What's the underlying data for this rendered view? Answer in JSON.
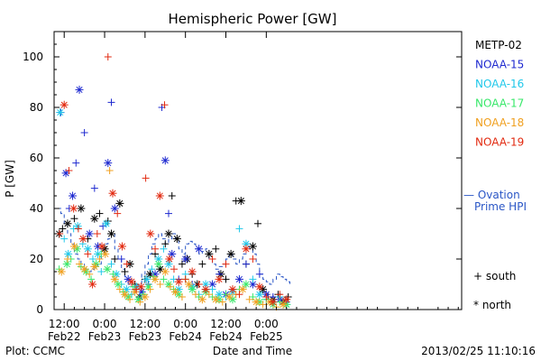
{
  "chart_data": {
    "type": "scatter",
    "title": "Hemispheric Power [GW]",
    "xlabel": "Date and Time",
    "ylabel": "P [GW]",
    "x_unit": "hours from 2013-02-22 00:00 UT",
    "xlim": [
      9,
      130
    ],
    "ylim": [
      0,
      110
    ],
    "yticks": [
      0,
      20,
      40,
      60,
      80,
      100
    ],
    "xticks": [
      {
        "x": 12,
        "label1": "12:00",
        "label2": "Feb22"
      },
      {
        "x": 24,
        "label1": "0:00",
        "label2": "Feb23"
      },
      {
        "x": 36,
        "label1": "12:00",
        "label2": "Feb23"
      },
      {
        "x": 48,
        "label1": "0:00",
        "label2": "Feb24"
      },
      {
        "x": 60,
        "label1": "12:00",
        "label2": "Feb24"
      },
      {
        "x": 72,
        "label1": "0:00",
        "label2": "Feb25"
      }
    ],
    "footer_left": "Plot: CCMC",
    "footer_right": "2013/02/25 11:10:16",
    "markers": {
      "south": "+ south",
      "north": "* north"
    },
    "ovation_label": [
      "— Ovation",
      "Prime HPI"
    ],
    "series": [
      {
        "name": "METP-02",
        "color": "#000000",
        "points": [
          [
            10.5,
            30
          ],
          [
            11.5,
            32
          ],
          [
            13,
            34
          ],
          [
            15,
            36
          ],
          [
            17,
            40
          ],
          [
            19,
            28
          ],
          [
            21,
            36
          ],
          [
            22.5,
            38
          ],
          [
            24,
            24
          ],
          [
            25,
            35
          ],
          [
            26,
            30
          ],
          [
            27,
            20
          ],
          [
            28.5,
            42
          ],
          [
            30,
            15
          ],
          [
            31.5,
            18
          ],
          [
            33,
            10
          ],
          [
            34.5,
            5
          ],
          [
            36,
            12
          ],
          [
            37.5,
            14
          ],
          [
            39,
            22
          ],
          [
            40.5,
            16
          ],
          [
            42,
            26
          ],
          [
            43,
            30
          ],
          [
            44,
            45
          ],
          [
            45.5,
            28
          ],
          [
            47,
            18
          ],
          [
            48.5,
            20
          ],
          [
            50,
            14
          ],
          [
            51.5,
            10
          ],
          [
            53,
            18
          ],
          [
            55,
            22
          ],
          [
            57,
            24
          ],
          [
            58.5,
            14
          ],
          [
            60,
            12
          ],
          [
            61.5,
            22
          ],
          [
            63,
            43
          ],
          [
            64.5,
            43
          ],
          [
            66,
            18
          ],
          [
            68,
            25
          ],
          [
            69.5,
            34
          ],
          [
            71,
            8
          ],
          [
            72.5,
            5
          ],
          [
            74,
            4
          ],
          [
            75.5,
            6
          ],
          [
            77,
            3
          ],
          [
            78.5,
            5
          ]
        ]
      },
      {
        "name": "NOAA-15",
        "color": "#1f2ad0",
        "points": [
          [
            11,
            78
          ],
          [
            12.5,
            54
          ],
          [
            13.5,
            40
          ],
          [
            14.5,
            45
          ],
          [
            15.5,
            58
          ],
          [
            16.5,
            87
          ],
          [
            18,
            70
          ],
          [
            19.5,
            30
          ],
          [
            21,
            48
          ],
          [
            22,
            25
          ],
          [
            23.5,
            33
          ],
          [
            25,
            58
          ],
          [
            26,
            82
          ],
          [
            27,
            40
          ],
          [
            29,
            20
          ],
          [
            31,
            12
          ],
          [
            33,
            8
          ],
          [
            35,
            7
          ],
          [
            37,
            10
          ],
          [
            39,
            14
          ],
          [
            41,
            80
          ],
          [
            42,
            59
          ],
          [
            43,
            38
          ],
          [
            44,
            22
          ],
          [
            46,
            12
          ],
          [
            48,
            20
          ],
          [
            50,
            10
          ],
          [
            52,
            24
          ],
          [
            54,
            8
          ],
          [
            56,
            10
          ],
          [
            58,
            14
          ],
          [
            60,
            6
          ],
          [
            62,
            8
          ],
          [
            64,
            12
          ],
          [
            66,
            18
          ],
          [
            68,
            10
          ],
          [
            70,
            14
          ],
          [
            72,
            6
          ],
          [
            74,
            5
          ],
          [
            76,
            4
          ],
          [
            78,
            3
          ]
        ]
      },
      {
        "name": "NOAA-16",
        "color": "#20c8ea",
        "points": [
          [
            10.8,
            78
          ],
          [
            12,
            28
          ],
          [
            13.2,
            22
          ],
          [
            14.8,
            32
          ],
          [
            16,
            33
          ],
          [
            17.5,
            26
          ],
          [
            19,
            24
          ],
          [
            20.5,
            20
          ],
          [
            22,
            22
          ],
          [
            23,
            15
          ],
          [
            24.5,
            34
          ],
          [
            26,
            18
          ],
          [
            27.5,
            14
          ],
          [
            29,
            10
          ],
          [
            30.5,
            8
          ],
          [
            32,
            6
          ],
          [
            33.5,
            9
          ],
          [
            35,
            5
          ],
          [
            36.5,
            12
          ],
          [
            38,
            16
          ],
          [
            40,
            20
          ],
          [
            41.5,
            24
          ],
          [
            43,
            18
          ],
          [
            44.5,
            12
          ],
          [
            46,
            8
          ],
          [
            48,
            14
          ],
          [
            50,
            9
          ],
          [
            52,
            6
          ],
          [
            54,
            10
          ],
          [
            56,
            8
          ],
          [
            58,
            6
          ],
          [
            60,
            5
          ],
          [
            62,
            7
          ],
          [
            64,
            32
          ],
          [
            66,
            26
          ],
          [
            68,
            12
          ],
          [
            70,
            6
          ],
          [
            72,
            4
          ],
          [
            74,
            3
          ],
          [
            76,
            5
          ],
          [
            78,
            2
          ]
        ]
      },
      {
        "name": "NOAA-17",
        "color": "#38e86a",
        "points": [
          [
            10.5,
            16
          ],
          [
            12.8,
            18
          ],
          [
            14,
            20
          ],
          [
            15.8,
            24
          ],
          [
            17,
            17
          ],
          [
            18.5,
            15
          ],
          [
            20,
            12
          ],
          [
            21.5,
            18
          ],
          [
            23,
            22
          ],
          [
            24.8,
            16
          ],
          [
            26.5,
            14
          ],
          [
            28,
            10
          ],
          [
            29.5,
            7
          ],
          [
            31,
            5
          ],
          [
            32.5,
            9
          ],
          [
            34,
            4
          ],
          [
            35.5,
            6
          ],
          [
            37,
            9
          ],
          [
            38.5,
            13
          ],
          [
            40,
            18
          ],
          [
            41.5,
            12
          ],
          [
            43,
            10
          ],
          [
            44.5,
            8
          ],
          [
            46,
            6
          ],
          [
            48,
            12
          ],
          [
            50,
            8
          ],
          [
            52,
            5
          ],
          [
            54,
            7
          ],
          [
            56,
            5
          ],
          [
            58,
            4
          ],
          [
            60,
            6
          ],
          [
            62,
            4
          ],
          [
            64,
            8
          ],
          [
            66,
            10
          ],
          [
            68,
            5
          ],
          [
            70,
            3
          ],
          [
            72,
            4
          ],
          [
            74,
            2
          ],
          [
            76,
            3
          ],
          [
            78,
            2
          ]
        ]
      },
      {
        "name": "NOAA-18",
        "color": "#f0a020",
        "points": [
          [
            11.2,
            15
          ],
          [
            13,
            20
          ],
          [
            15,
            25
          ],
          [
            16.5,
            18
          ],
          [
            18,
            16
          ],
          [
            19.5,
            14
          ],
          [
            21,
            17
          ],
          [
            22.5,
            20
          ],
          [
            24.2,
            22
          ],
          [
            25.5,
            55
          ],
          [
            27,
            12
          ],
          [
            28.5,
            8
          ],
          [
            30,
            6
          ],
          [
            31.5,
            4
          ],
          [
            33,
            7
          ],
          [
            34.5,
            3
          ],
          [
            36,
            5
          ],
          [
            37.5,
            8
          ],
          [
            39,
            12
          ],
          [
            40.5,
            10
          ],
          [
            42,
            15
          ],
          [
            43.5,
            9
          ],
          [
            45,
            7
          ],
          [
            47,
            5
          ],
          [
            49,
            10
          ],
          [
            51,
            6
          ],
          [
            53,
            4
          ],
          [
            55,
            6
          ],
          [
            57,
            4
          ],
          [
            59,
            3
          ],
          [
            61,
            5
          ],
          [
            63,
            6
          ],
          [
            65,
            8
          ],
          [
            67,
            4
          ],
          [
            69,
            3
          ],
          [
            71,
            2
          ],
          [
            73,
            3
          ],
          [
            75,
            1
          ],
          [
            77,
            2
          ]
        ]
      },
      {
        "name": "NOAA-19",
        "color": "#e22a10",
        "points": [
          [
            10.6,
            30
          ],
          [
            12,
            81
          ],
          [
            13.4,
            55
          ],
          [
            14.8,
            40
          ],
          [
            16.2,
            32
          ],
          [
            17.6,
            28
          ],
          [
            19,
            22
          ],
          [
            20.4,
            10
          ],
          [
            21.8,
            30
          ],
          [
            23.2,
            25
          ],
          [
            25,
            100
          ],
          [
            26.4,
            46
          ],
          [
            27.8,
            38
          ],
          [
            29.2,
            25
          ],
          [
            30.6,
            18
          ],
          [
            32,
            11
          ],
          [
            33.4,
            8
          ],
          [
            34.8,
            9
          ],
          [
            36.2,
            52
          ],
          [
            37.6,
            30
          ],
          [
            39,
            24
          ],
          [
            40.4,
            45
          ],
          [
            41.8,
            81
          ],
          [
            43.2,
            20
          ],
          [
            44.6,
            16
          ],
          [
            46,
            11
          ],
          [
            48,
            12
          ],
          [
            50,
            15
          ],
          [
            52,
            10
          ],
          [
            54,
            8
          ],
          [
            56,
            20
          ],
          [
            58,
            12
          ],
          [
            60,
            18
          ],
          [
            62,
            8
          ],
          [
            64,
            6
          ],
          [
            66,
            24
          ],
          [
            68,
            20
          ],
          [
            70,
            9
          ],
          [
            72,
            5
          ],
          [
            74,
            3
          ],
          [
            76,
            6
          ],
          [
            78,
            4
          ]
        ]
      }
    ],
    "ovation_line": [
      [
        10,
        40
      ],
      [
        11,
        38
      ],
      [
        12,
        34
      ],
      [
        13,
        30
      ],
      [
        14,
        26
      ],
      [
        15,
        22
      ],
      [
        16,
        20
      ],
      [
        17,
        18
      ],
      [
        18,
        16
      ],
      [
        19,
        15
      ],
      [
        20,
        16
      ],
      [
        21,
        17
      ],
      [
        22,
        18
      ],
      [
        23,
        22
      ],
      [
        24,
        26
      ],
      [
        25,
        28
      ],
      [
        26,
        30
      ],
      [
        27,
        24
      ],
      [
        28,
        20
      ],
      [
        29,
        16
      ],
      [
        30,
        12
      ],
      [
        31,
        10
      ],
      [
        32,
        9
      ],
      [
        33,
        8
      ],
      [
        34,
        10
      ],
      [
        35,
        14
      ],
      [
        36,
        18
      ],
      [
        37,
        22
      ],
      [
        38,
        26
      ],
      [
        39,
        28
      ],
      [
        40,
        30
      ],
      [
        41,
        28
      ],
      [
        42,
        26
      ],
      [
        43,
        28
      ],
      [
        44,
        30
      ],
      [
        45,
        28
      ],
      [
        46,
        24
      ],
      [
        47,
        22
      ],
      [
        48,
        26
      ],
      [
        49,
        27
      ],
      [
        50,
        26
      ],
      [
        51,
        24
      ],
      [
        52,
        22
      ],
      [
        53,
        23
      ],
      [
        54,
        24
      ],
      [
        55,
        20
      ],
      [
        56,
        18
      ],
      [
        57,
        16
      ],
      [
        58,
        17
      ],
      [
        59,
        18
      ],
      [
        60,
        20
      ],
      [
        61,
        22
      ],
      [
        62,
        20
      ],
      [
        63,
        18
      ],
      [
        64,
        20
      ],
      [
        65,
        22
      ],
      [
        66,
        26
      ],
      [
        67,
        24
      ],
      [
        68,
        22
      ],
      [
        69,
        18
      ],
      [
        70,
        14
      ],
      [
        71,
        12
      ],
      [
        72,
        11
      ],
      [
        73,
        10
      ],
      [
        74,
        12
      ],
      [
        75,
        14
      ],
      [
        76,
        13
      ],
      [
        77,
        12
      ],
      [
        78,
        11
      ],
      [
        79,
        10
      ]
    ]
  }
}
